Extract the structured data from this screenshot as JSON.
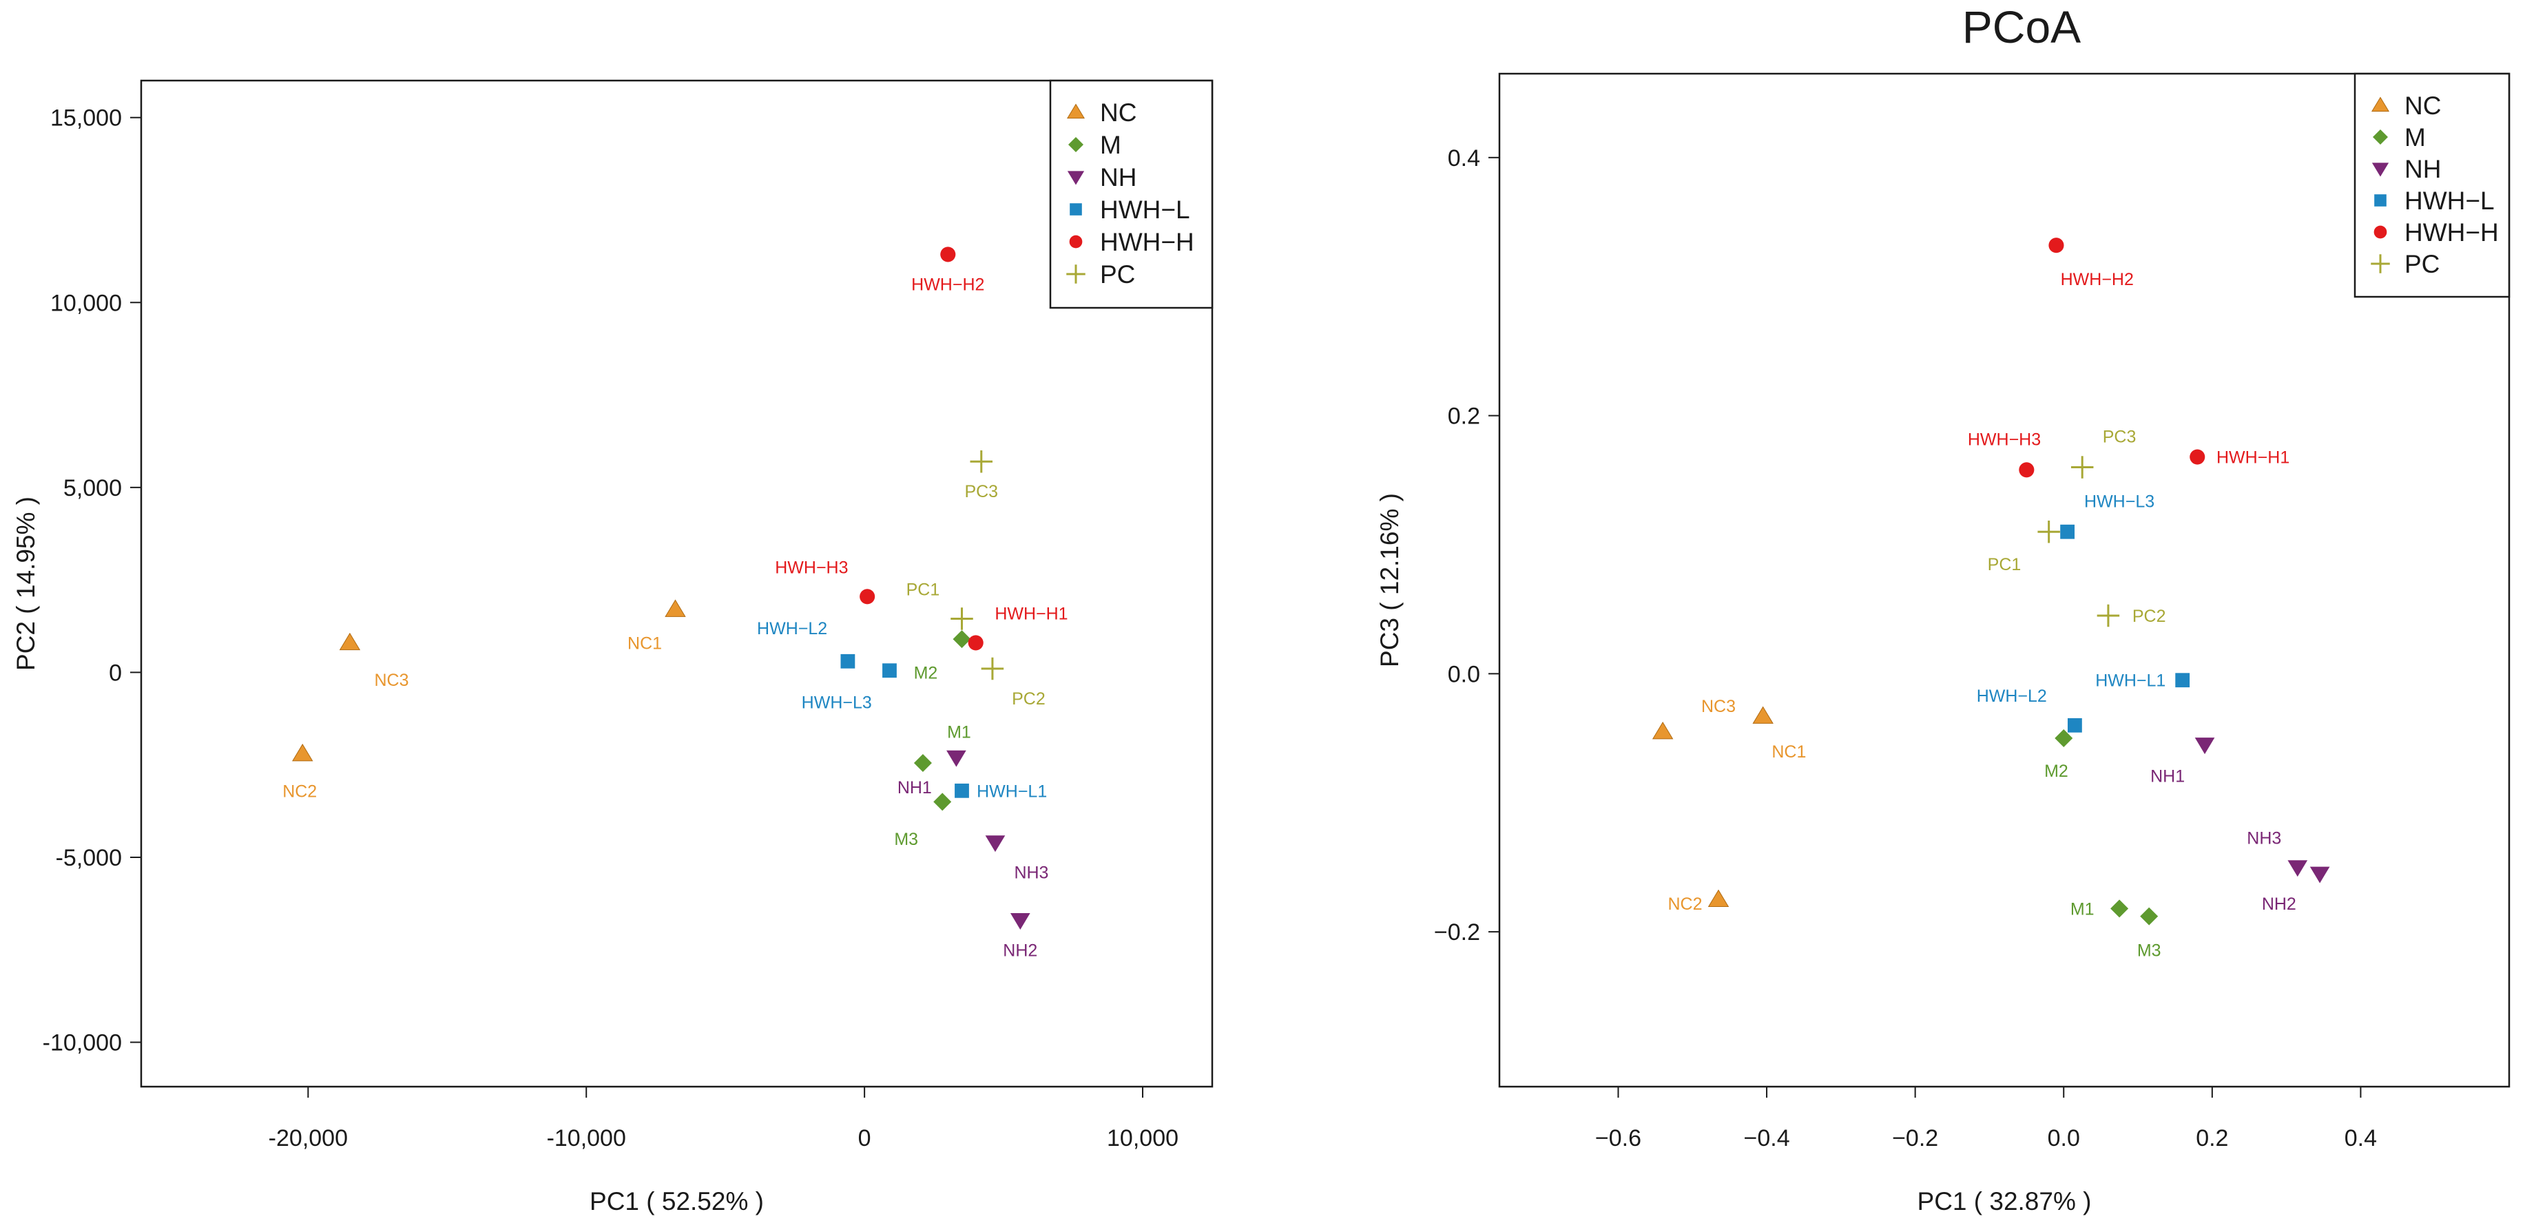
{
  "colors": {
    "NC": "#E8962E",
    "M": "#5E9A2F",
    "NH": "#7A2775",
    "HWH-L": "#1E86C2",
    "HWH-H": "#E31A1C",
    "PC": "#A8A836"
  },
  "chart_data": [
    {
      "type": "scatter",
      "title": "",
      "xlabel": "PC1 (  52.52% )",
      "ylabel": "PC2 ( 14.95% )",
      "xlim": [
        -26000,
        12500
      ],
      "ylim": [
        -11200,
        16000
      ],
      "xticks": [
        -20000,
        -10000,
        0,
        10000
      ],
      "xtick_labels": [
        "-20,000",
        "-10,000",
        "0",
        "10,000"
      ],
      "yticks": [
        -10000,
        -5000,
        0,
        5000,
        10000,
        15000
      ],
      "ytick_labels": [
        "-10,000",
        "-5,000",
        "0",
        "5,000",
        "10,000",
        "15,000"
      ],
      "legend_position": "top-right",
      "legend": [
        "NC",
        "M",
        "NH",
        "HWH−L",
        "HWH−H",
        "PC"
      ],
      "points": [
        {
          "label": "NC1",
          "group": "NC",
          "x": -6800,
          "y": 1700,
          "lx": -7900,
          "ly": 800
        },
        {
          "label": "NC2",
          "group": "NC",
          "x": -20200,
          "y": -2200,
          "lx": -20300,
          "ly": -3200
        },
        {
          "label": "NC3",
          "group": "NC",
          "x": -18500,
          "y": 800,
          "lx": -17000,
          "ly": -200
        },
        {
          "label": "M1",
          "group": "M",
          "x": 2100,
          "y": -2450,
          "lx": 3400,
          "ly": -1600
        },
        {
          "label": "M2",
          "group": "M",
          "x": 3500,
          "y": 900,
          "lx": 2200,
          "ly": 0
        },
        {
          "label": "M3",
          "group": "M",
          "x": 2800,
          "y": -3500,
          "lx": 1500,
          "ly": -4500
        },
        {
          "label": "NH1",
          "group": "NH",
          "x": 3300,
          "y": -2300,
          "lx": 1800,
          "ly": -3100
        },
        {
          "label": "NH2",
          "group": "NH",
          "x": 5600,
          "y": -6700,
          "lx": 5600,
          "ly": -7500
        },
        {
          "label": "NH3",
          "group": "NH",
          "x": 4700,
          "y": -4600,
          "lx": 6000,
          "ly": -5400
        },
        {
          "label": "HWH−L1",
          "group": "HWH-L",
          "x": 3500,
          "y": -3200,
          "lx": 5300,
          "ly": -3200
        },
        {
          "label": "HWH−L2",
          "group": "HWH-L",
          "x": -600,
          "y": 300,
          "lx": -2600,
          "ly": 1200
        },
        {
          "label": "HWH−L3",
          "group": "HWH-L",
          "x": 900,
          "y": 50,
          "lx": -1000,
          "ly": -800
        },
        {
          "label": "HWH−H1",
          "group": "HWH-H",
          "x": 4000,
          "y": 800,
          "lx": 6000,
          "ly": 1600
        },
        {
          "label": "HWH−H2",
          "group": "HWH-H",
          "x": 3000,
          "y": 11300,
          "lx": 3000,
          "ly": 10500
        },
        {
          "label": "HWH−H3",
          "group": "HWH-H",
          "x": 100,
          "y": 2050,
          "lx": -1900,
          "ly": 2850
        },
        {
          "label": "PC1",
          "group": "PC",
          "x": 3500,
          "y": 1450,
          "lx": 2100,
          "ly": 2250
        },
        {
          "label": "PC2",
          "group": "PC",
          "x": 4600,
          "y": 100,
          "lx": 5900,
          "ly": -700
        },
        {
          "label": "PC3",
          "group": "PC",
          "x": 4200,
          "y": 5700,
          "lx": 4200,
          "ly": 4900
        }
      ]
    },
    {
      "type": "scatter",
      "title": "PCoA",
      "xlabel": "PC1 ( 32.87% )",
      "ylabel": "PC3 ( 12.16% )",
      "xlim": [
        -0.76,
        0.6
      ],
      "ylim": [
        -0.32,
        0.465
      ],
      "xticks": [
        -0.6,
        -0.4,
        -0.2,
        0.0,
        0.2,
        0.4
      ],
      "xtick_labels": [
        "−0.6",
        "−0.4",
        "−0.2",
        "0.0",
        "0.2",
        "0.4"
      ],
      "yticks": [
        -0.2,
        0.0,
        0.2,
        0.4
      ],
      "ytick_labels": [
        "−0.2",
        "0.0",
        "0.2",
        "0.4"
      ],
      "legend_position": "top-right",
      "legend": [
        "NC",
        "M",
        "NH",
        "HWH−L",
        "HWH−H",
        "PC"
      ],
      "points": [
        {
          "label": "NC1",
          "group": "NC",
          "x": -0.405,
          "y": -0.033,
          "lx": -0.37,
          "ly": -0.06
        },
        {
          "label": "NC2",
          "group": "NC",
          "x": -0.465,
          "y": -0.175,
          "lx": -0.51,
          "ly": -0.178
        },
        {
          "label": "NC3",
          "group": "NC",
          "x": -0.54,
          "y": -0.045,
          "lx": -0.465,
          "ly": -0.025
        },
        {
          "label": "M1",
          "group": "M",
          "x": 0.075,
          "y": -0.182,
          "lx": 0.025,
          "ly": -0.182
        },
        {
          "label": "M2",
          "group": "M",
          "x": 0.0,
          "y": -0.05,
          "lx": -0.01,
          "ly": -0.075
        },
        {
          "label": "M3",
          "group": "M",
          "x": 0.115,
          "y": -0.188,
          "lx": 0.115,
          "ly": -0.214
        },
        {
          "label": "NH1",
          "group": "NH",
          "x": 0.19,
          "y": -0.055,
          "lx": 0.14,
          "ly": -0.079
        },
        {
          "label": "NH2",
          "group": "NH",
          "x": 0.345,
          "y": -0.155,
          "lx": 0.29,
          "ly": -0.178
        },
        {
          "label": "NH3",
          "group": "NH",
          "x": 0.315,
          "y": -0.15,
          "lx": 0.27,
          "ly": -0.127
        },
        {
          "label": "HWH−L1",
          "group": "HWH-L",
          "x": 0.16,
          "y": -0.005,
          "lx": 0.09,
          "ly": -0.005
        },
        {
          "label": "HWH−L2",
          "group": "HWH-L",
          "x": 0.015,
          "y": -0.04,
          "lx": -0.07,
          "ly": -0.017
        },
        {
          "label": "HWH−L3",
          "group": "HWH-L",
          "x": 0.005,
          "y": 0.11,
          "lx": 0.075,
          "ly": 0.134
        },
        {
          "label": "HWH−H1",
          "group": "HWH-H",
          "x": 0.18,
          "y": 0.168,
          "lx": 0.255,
          "ly": 0.168
        },
        {
          "label": "HWH−H2",
          "group": "HWH-H",
          "x": -0.01,
          "y": 0.332,
          "lx": 0.045,
          "ly": 0.306
        },
        {
          "label": "HWH−H3",
          "group": "HWH-H",
          "x": -0.05,
          "y": 0.158,
          "lx": -0.08,
          "ly": 0.182
        },
        {
          "label": "PC1",
          "group": "PC",
          "x": -0.02,
          "y": 0.11,
          "lx": -0.08,
          "ly": 0.085
        },
        {
          "label": "PC2",
          "group": "PC",
          "x": 0.06,
          "y": 0.045,
          "lx": 0.115,
          "ly": 0.045
        },
        {
          "label": "PC3",
          "group": "PC",
          "x": 0.025,
          "y": 0.16,
          "lx": 0.075,
          "ly": 0.184
        }
      ]
    }
  ]
}
